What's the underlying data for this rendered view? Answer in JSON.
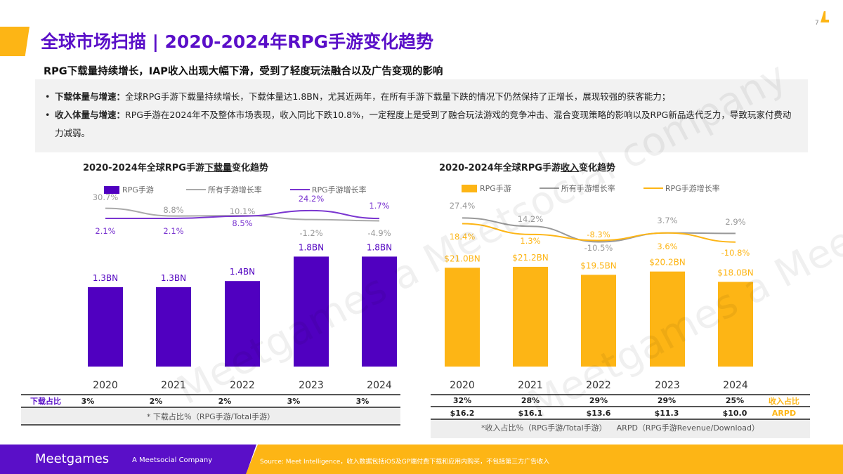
{
  "header": {
    "title": "全球市场扫描 | 2020-2024年RPG手游变化趋势",
    "subtitle": "RPG下载量持续增长，IAP收入出现大幅下滑，受到了轻度玩法融合以及广告变现的影响",
    "page_number": "7"
  },
  "summary": [
    {
      "label": "下载体量与增速：",
      "text": "全球RPG手游下载量持续增长，下载体量达1.8BN，尤其近两年，在所有手游下载量下跌的情况下仍然保持了正增长，展现较强的获客能力；"
    },
    {
      "label": "收入体量与增速：",
      "text": "RPG手游在2024年不及整体市场表现，收入同比下跌10.8%，一定程度上是受到了融合玩法游戏的竞争冲击、混合变现策略的影响以及RPG新品迭代乏力，导致玩家付费动力减弱。"
    }
  ],
  "watermark": "Meetgames a Meetsocial company",
  "chart_data": [
    {
      "type": "bar",
      "title_pre": "2020-2024年全球RPG手游",
      "title_em": "下载量",
      "title_post": "变化趋势",
      "categories": [
        "2020",
        "2021",
        "2022",
        "2023",
        "2024"
      ],
      "legend": [
        "RPG手游",
        "所有手游增长率",
        "RPG手游增长率"
      ],
      "bar_color": "#5000c0",
      "line_colors": [
        "#aaaaaa",
        "#7a35d0"
      ],
      "bar_values": [
        1.3,
        1.3,
        1.4,
        1.8,
        1.8
      ],
      "bar_labels": [
        "1.3BN",
        "1.3BN",
        "1.4BN",
        "1.8BN",
        "1.8BN"
      ],
      "bar_unit": "BN",
      "all_growth": [
        30.7,
        8.8,
        10.1,
        -1.2,
        -4.9
      ],
      "rpg_growth": [
        2.1,
        2.1,
        8.5,
        24.2,
        1.7
      ],
      "table": {
        "row_label": "下载占比",
        "values": [
          "3%",
          "2%",
          "2%",
          "3%",
          "3%"
        ],
        "note": "* 下载占比％（RPG手游/Total手游）"
      }
    },
    {
      "type": "bar",
      "title_pre": "2020-2024年全球RPG手游",
      "title_em": "收入",
      "title_post": "变化趋势",
      "categories": [
        "2020",
        "2021",
        "2022",
        "2023",
        "2024"
      ],
      "legend": [
        "RPG手游",
        "所有手游增长率",
        "RPG手游增长率"
      ],
      "bar_color": "#fdb515",
      "line_colors": [
        "#999999",
        "#fdb515"
      ],
      "bar_values": [
        21.0,
        21.2,
        19.5,
        20.2,
        18.0
      ],
      "bar_labels": [
        "$21.0BN",
        "$21.2BN",
        "$19.5BN",
        "$20.2BN",
        "$18.0BN"
      ],
      "bar_unit": "$BN",
      "all_growth": [
        27.4,
        14.2,
        -10.5,
        3.7,
        2.9
      ],
      "rpg_growth": [
        18.4,
        1.3,
        -8.3,
        3.6,
        -10.8
      ],
      "table": {
        "row1_label": "收入占比",
        "row1": [
          "32%",
          "28%",
          "29%",
          "29%",
          "25%"
        ],
        "row2_label": "ARPD",
        "row2": [
          "$16.2",
          "$16.1",
          "$13.6",
          "$11.3",
          "$10.0"
        ],
        "note": "*收入占比％（RPG手游/Total手游）    ARPD（RPG手游Revenue/Download）"
      }
    }
  ],
  "footer": {
    "logo": "Meetgames",
    "tagline": "A Meetsocial Company",
    "source": "Source: Meet Intelligence，收入数据包括iOS及GP端付费下载和应用内购买，不包括第三方广告收入"
  }
}
